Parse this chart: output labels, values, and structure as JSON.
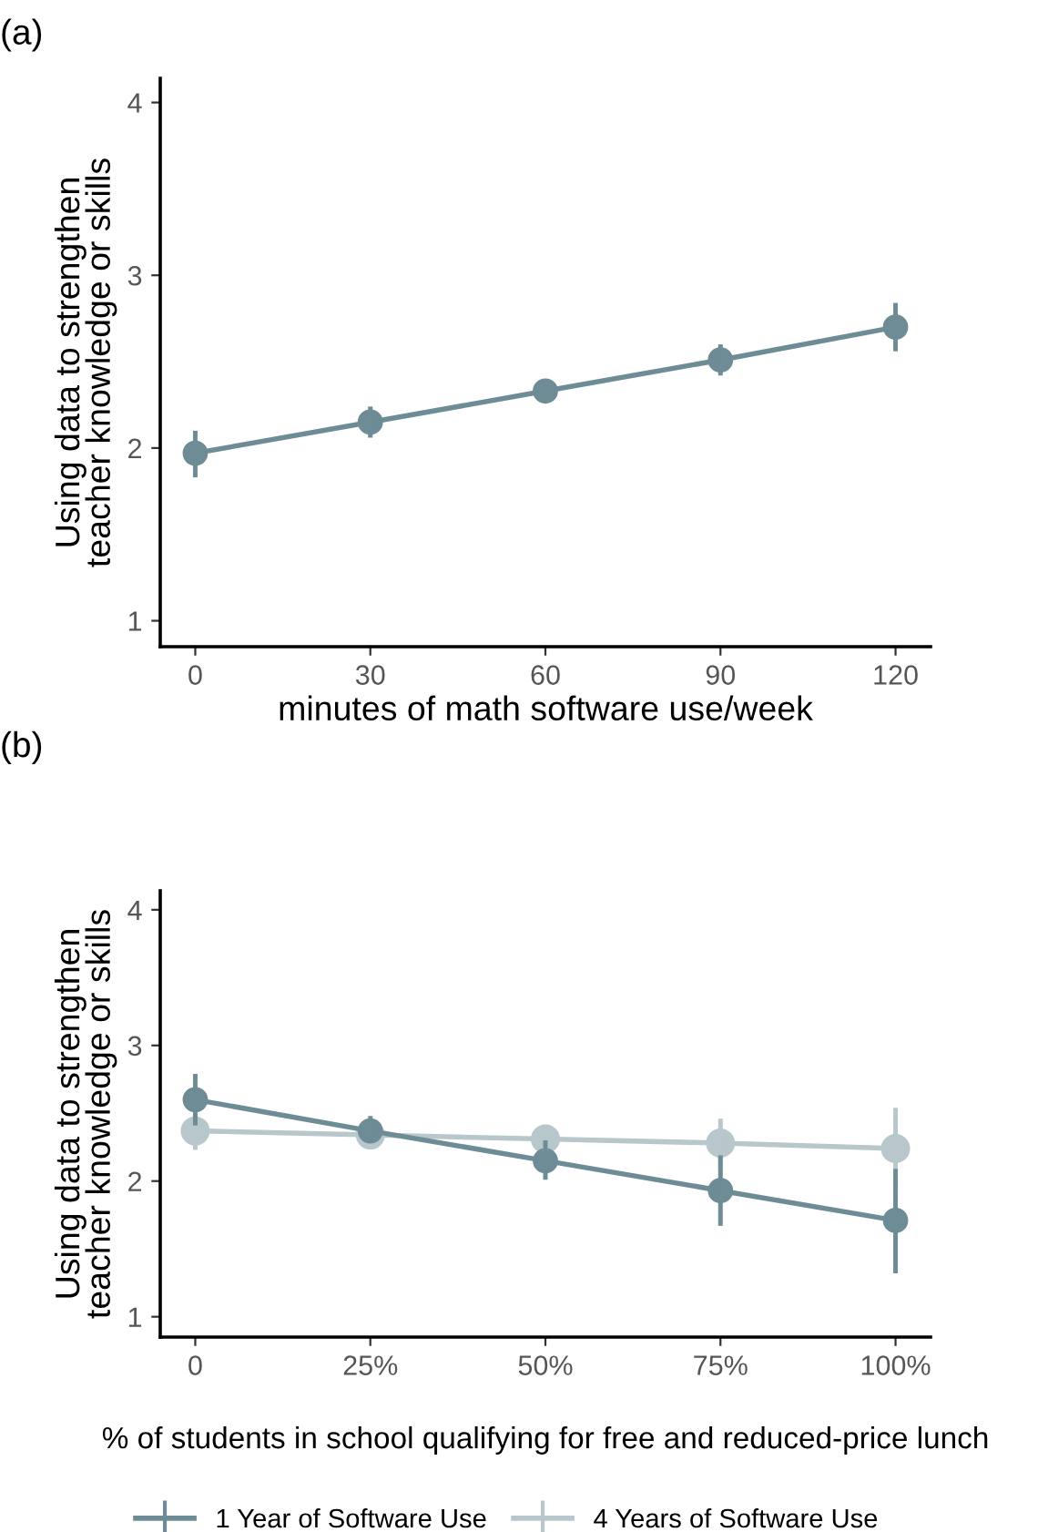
{
  "chart_data": [
    {
      "type": "line",
      "title": "(a)",
      "xlabel": "minutes of math software use/week",
      "ylabel": "Using data to strengthen\nteacher knowledge or skills",
      "x": [
        0,
        30,
        60,
        90,
        120
      ],
      "xlim": [
        -6,
        126
      ],
      "xticks": [
        0,
        30,
        60,
        90,
        120
      ],
      "ylim": [
        0.85,
        4.14
      ],
      "yticks": [
        1,
        2,
        3,
        4
      ],
      "marker": "circle",
      "grid": false,
      "legend": false,
      "series": [
        {
          "color": "#6e8c96",
          "values": [
            1.97,
            2.15,
            2.33,
            2.51,
            2.7
          ],
          "errors": [
            [
              1.83,
              2.1
            ],
            [
              2.06,
              2.24
            ],
            [
              2.27,
              2.39
            ],
            [
              2.42,
              2.6
            ],
            [
              2.56,
              2.84
            ]
          ]
        }
      ]
    },
    {
      "type": "line",
      "title": "(b)",
      "xlabel": "% of students in school qualifying for free and reduced-price lunch",
      "ylabel": "Using data to strengthen\nteacher knowledge or skills",
      "x": [
        0,
        25,
        50,
        75,
        100
      ],
      "xlim": [
        -5,
        105
      ],
      "xticks": [
        0,
        {
          "value": 25,
          "label": "25%"
        },
        {
          "value": 50,
          "label": "50%"
        },
        {
          "value": 75,
          "label": "75%"
        },
        {
          "value": 100,
          "label": "100%"
        }
      ],
      "ylim": [
        0.85,
        4.14
      ],
      "yticks": [
        1,
        2,
        3,
        4
      ],
      "marker": "circle",
      "grid": false,
      "legend": "bottom",
      "series": [
        {
          "name": "1 Year of Software Use",
          "color": "#6e8c96",
          "values": [
            2.6,
            2.37,
            2.15,
            1.93,
            1.71
          ],
          "errors": [
            [
              2.41,
              2.79
            ],
            [
              2.28,
              2.48
            ],
            [
              2.01,
              2.3
            ],
            [
              1.67,
              2.19
            ],
            [
              1.32,
              2.09
            ]
          ]
        },
        {
          "name": "4 Years of Software Use",
          "color": "#b8c7cc",
          "values": [
            2.37,
            2.34,
            2.31,
            2.28,
            2.24
          ],
          "errors": [
            [
              2.23,
              2.49
            ],
            null,
            [
              2.22,
              2.41
            ],
            [
              2.1,
              2.46
            ],
            [
              1.94,
              2.54
            ]
          ]
        }
      ]
    }
  ]
}
